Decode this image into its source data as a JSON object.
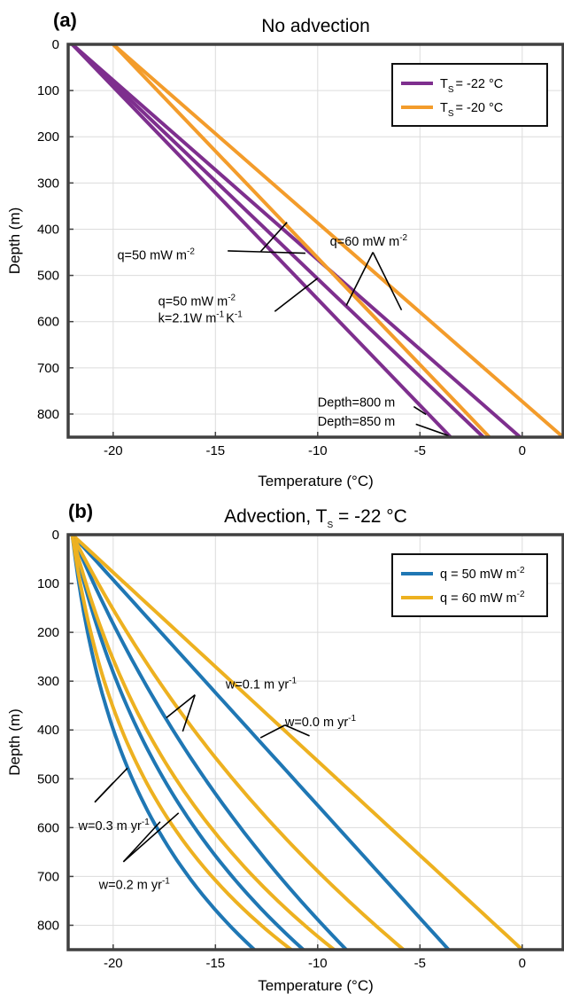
{
  "chart_data": [
    {
      "type": "line",
      "panel_label": "(a)",
      "title": "No advection",
      "xlabel": "Temperature (°C)",
      "ylabel": "Depth (m)",
      "xlim": [
        -22.2,
        2
      ],
      "ylim": [
        0,
        850
      ],
      "y_reversed": true,
      "grid": true,
      "xticks": [
        -20,
        -15,
        -10,
        -5,
        0
      ],
      "yticks": [
        0,
        100,
        200,
        300,
        400,
        500,
        600,
        700,
        800
      ],
      "legend": {
        "placement": "top-right",
        "entries": [
          {
            "label": "T",
            "sub": "S",
            "rest": "= -22 °C",
            "color": "#7E2F8E"
          },
          {
            "label": "T",
            "sub": "S",
            "rest": "= -20 °C",
            "color": "#F39C2B"
          }
        ]
      },
      "series": [
        {
          "color": "#7E2F8E",
          "x": [
            -22,
            -0.1
          ],
          "y": [
            0,
            850
          ]
        },
        {
          "color": "#7E2F8E",
          "x": [
            -22,
            -1.9
          ],
          "y": [
            0,
            850
          ]
        },
        {
          "color": "#7E2F8E",
          "x": [
            -22,
            -3.5
          ],
          "y": [
            0,
            850
          ]
        },
        {
          "color": "#F39C2B",
          "x": [
            -20,
            -1.6
          ],
          "y": [
            0,
            850
          ]
        },
        {
          "color": "#F39C2B",
          "x": [
            -20,
            2.0
          ],
          "y": [
            0,
            850
          ]
        }
      ],
      "annotations": [
        {
          "id": "q50a",
          "text": "q=50 mW m",
          "sup": "-2",
          "x": -19.8,
          "y": 465,
          "anchor": "start",
          "lines": [
            [
              -12.8,
              449,
              -14.4,
              447
            ],
            [
              -12.8,
              449,
              -11.5,
              385
            ],
            [
              -12.8,
              449,
              -10.6,
              452
            ]
          ]
        },
        {
          "id": "q60",
          "text": "q=60 mW m",
          "sup": "-2",
          "x": -9.4,
          "y": 436,
          "anchor": "start",
          "lines": [
            [
              -7.3,
              450,
              -8.6,
              565
            ],
            [
              -7.3,
              450,
              -5.9,
              575
            ]
          ]
        },
        {
          "id": "q50b",
          "text": "q=50 mW m",
          "sup": "-2",
          "x": -17.8,
          "y": 565,
          "anchor": "start",
          "lines": [
            [
              -12.1,
              578,
              -10.0,
              506
            ]
          ]
        },
        {
          "id": "k21",
          "text": "k=2.1W m",
          "sup": "-1",
          "text2": "K",
          "sup2": "-1",
          "x": -17.8,
          "y": 602,
          "anchor": "start"
        },
        {
          "id": "d800",
          "text": "Depth=800 m",
          "x": -10.0,
          "y": 784,
          "anchor": "start",
          "lines": [
            [
              -5.3,
              784,
              -4.7,
              801
            ]
          ]
        },
        {
          "id": "d850",
          "text": "Depth=850 m",
          "x": -10.0,
          "y": 825,
          "anchor": "start",
          "lines": [
            [
              -5.2,
              822,
              -3.6,
              847
            ]
          ]
        }
      ]
    },
    {
      "type": "line",
      "panel_label": "(b)",
      "title": "Advection, T",
      "title_sub": "S",
      "title_rest": " = -22 °C",
      "xlabel": "Temperature (°C)",
      "ylabel": "Depth (m)",
      "xlim": [
        -22.2,
        2
      ],
      "ylim": [
        0,
        850
      ],
      "y_reversed": true,
      "grid": true,
      "xticks": [
        -20,
        -15,
        -10,
        -5,
        0
      ],
      "yticks": [
        0,
        100,
        200,
        300,
        400,
        500,
        600,
        700,
        800
      ],
      "legend": {
        "placement": "top-right",
        "entries": [
          {
            "label": "q = 50 mW m",
            "sup": "-2",
            "color": "#1F77B4"
          },
          {
            "label": "q = 60 mW m",
            "sup": "-2",
            "color": "#EDB120"
          }
        ]
      },
      "series": [
        {
          "color": "#1F77B4",
          "w": 0.0,
          "end": -3.6,
          "k": 0.02
        },
        {
          "color": "#EDB120",
          "w": 0.0,
          "end": 0.0,
          "k": 0.02
        },
        {
          "color": "#1F77B4",
          "w": 0.1,
          "end": -8.6,
          "k": 0.85
        },
        {
          "color": "#EDB120",
          "w": 0.1,
          "end": -5.8,
          "k": 0.85
        },
        {
          "color": "#1F77B4",
          "w": 0.2,
          "end": -10.7,
          "k": 1.6
        },
        {
          "color": "#EDB120",
          "w": 0.2,
          "end": -9.2,
          "k": 1.6
        },
        {
          "color": "#1F77B4",
          "w": 0.3,
          "end": -13.1,
          "k": 2.2
        },
        {
          "color": "#EDB120",
          "w": 0.3,
          "end": -11.3,
          "k": 2.2
        }
      ],
      "annotations": [
        {
          "id": "w01",
          "text": "w=0.1 m yr",
          "sup": "-1",
          "x": -14.5,
          "y": 315,
          "anchor": "start",
          "lines": [
            [
              -16.0,
              328,
              -17.4,
              375
            ],
            [
              -16.0,
              328,
              -16.6,
              403
            ]
          ]
        },
        {
          "id": "w00",
          "text": "w=0.0 m yr",
          "sup": "-1",
          "x": -11.6,
          "y": 392,
          "anchor": "start",
          "lines": [
            [
              -11.6,
              390,
              -12.8,
              416
            ],
            [
              -11.6,
              390,
              -10.4,
              412
            ]
          ]
        },
        {
          "id": "w03",
          "text": "w=0.3 m yr",
          "sup": "-1",
          "x": -21.7,
          "y": 605,
          "anchor": "start",
          "lines": [
            [
              -20.9,
              548,
              -20.0,
              508
            ],
            [
              -20.9,
              548,
              -19.3,
              478
            ]
          ]
        },
        {
          "id": "w02",
          "text": "w=0.2 m yr",
          "sup": "-1",
          "x": -20.7,
          "y": 726,
          "anchor": "start",
          "lines": [
            [
              -19.5,
              670,
              -17.7,
              588
            ],
            [
              -19.5,
              670,
              -16.8,
              570
            ]
          ]
        }
      ]
    }
  ]
}
